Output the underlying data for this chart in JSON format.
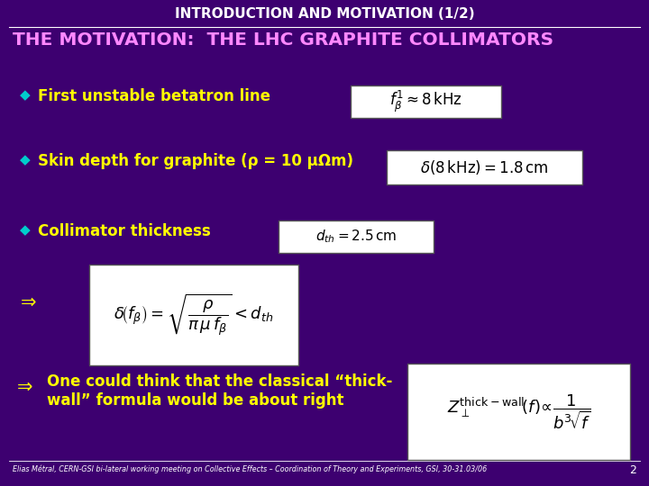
{
  "bg_color": "#3D0070",
  "title": "INTRODUCTION AND MOTIVATION (1/2)",
  "title_color": "#FFFFFF",
  "title_fontsize": 11,
  "heading": "THE MOTIVATION:  THE LHC GRAPHITE COLLIMATORS",
  "heading_color": "#FF88FF",
  "heading_fontsize": 14.5,
  "bullet_color": "#00CCCC",
  "bullet_text_color": "#FFFF00",
  "bullet_fontsize": 12,
  "bullets": [
    "First unstable betatron line",
    "Skin depth for graphite (ρ = 10 μΩm)",
    "Collimator thickness"
  ],
  "arrow_color": "#FFFF00",
  "footer_text": "Elias Métral, CERN-GSI bi-lateral working meeting on Collective Effects – Coordination of Theory and Experiments, GSI, 30-31.03/06",
  "footer_color": "#FFFFFF",
  "footer_fontsize": 5.8,
  "page_num": "2",
  "conclusion_color": "#FFFF00",
  "conclusion_fontsize": 12
}
